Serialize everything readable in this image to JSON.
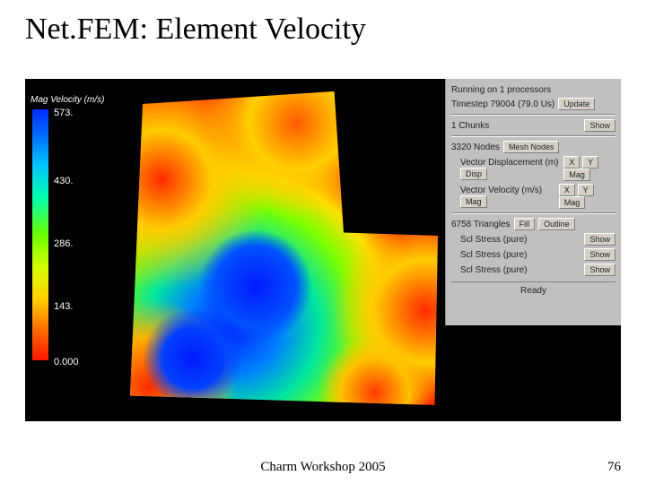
{
  "slide": {
    "title": "Net.FEM: Element Velocity",
    "footer": "Charm Workshop 2005",
    "page": "76"
  },
  "legend": {
    "label": "Mag Velocity (m/s)",
    "ticks": [
      "573.",
      "430.",
      "286.",
      "143.",
      "0.000"
    ],
    "gradient_stops": [
      {
        "off": "0%",
        "c": "#002aff"
      },
      {
        "off": "10%",
        "c": "#006bff"
      },
      {
        "off": "22%",
        "c": "#00c3ff"
      },
      {
        "off": "35%",
        "c": "#00ffb0"
      },
      {
        "off": "50%",
        "c": "#6bff00"
      },
      {
        "off": "63%",
        "c": "#d4ff00"
      },
      {
        "off": "75%",
        "c": "#ffd400"
      },
      {
        "off": "88%",
        "c": "#ff6a00"
      },
      {
        "off": "100%",
        "c": "#ff1600"
      }
    ]
  },
  "panel": {
    "running": "Running on 1 processors",
    "timestep_label": "Timestep 79004 (79.0 Us)",
    "update": "Update",
    "chunks": "1 Chunks",
    "show": "Show",
    "nodes": "3320 Nodes",
    "mesh_nodes": "Mesh Nodes",
    "vec_disp": "Vector Displacement (m)",
    "disp": "Disp",
    "vec_vel": "Vector Velocity (m/s)",
    "mag": "Mag",
    "btn_x": "X",
    "btn_y": "Y",
    "btn_mag": "Mag",
    "triangles": "6758 Triangles",
    "fill": "Fill",
    "outline": "Outline",
    "stress1": "Scl Stress (pure)",
    "stress2": "Scl Stress (pure)",
    "stress3": "Scl Stress (pure)",
    "ready": "Ready"
  },
  "colors": {
    "panel_bg": "#c0c0c0",
    "black": "#000000"
  }
}
